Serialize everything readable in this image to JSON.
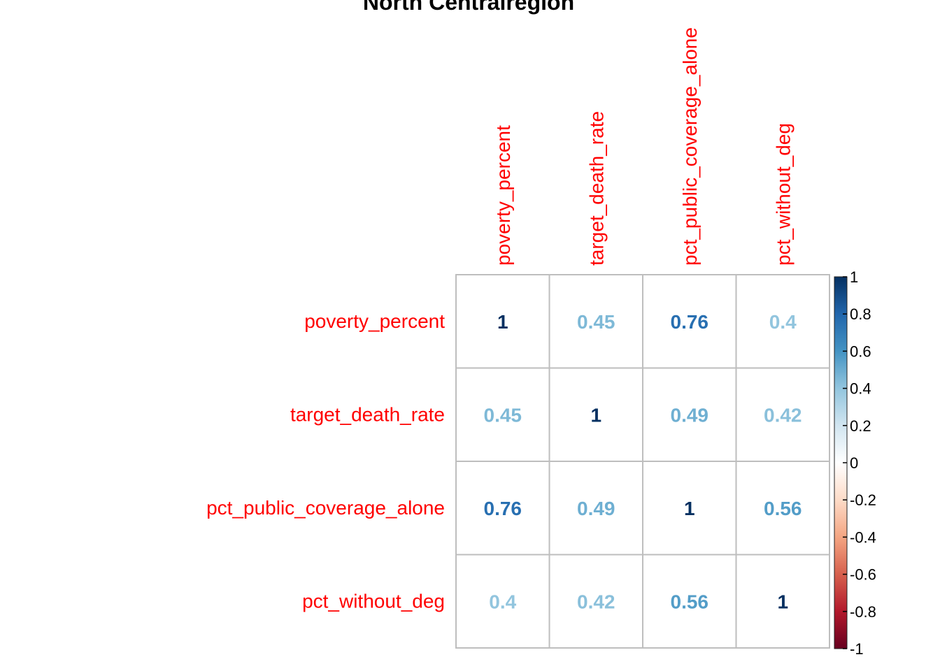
{
  "chart_data": {
    "type": "heatmap",
    "title": "North Centralregion",
    "variables": [
      "poverty_percent",
      "target_death_rate",
      "pct_public_coverage_alone",
      "pct_without_deg"
    ],
    "matrix": [
      [
        1,
        0.45,
        0.76,
        0.4
      ],
      [
        0.45,
        1,
        0.49,
        0.42
      ],
      [
        0.76,
        0.49,
        1,
        0.56
      ],
      [
        0.4,
        0.42,
        0.56,
        1
      ]
    ],
    "cell_labels": [
      [
        "1",
        "0.45",
        "0.76",
        "0.4"
      ],
      [
        "0.45",
        "1",
        "0.49",
        "0.42"
      ],
      [
        "0.76",
        "0.49",
        "1",
        "0.56"
      ],
      [
        "0.4",
        "0.42",
        "0.56",
        "1"
      ]
    ],
    "color_scale": {
      "range": [
        -1,
        1
      ],
      "ticks": [
        "1",
        "0.8",
        "0.6",
        "0.4",
        "0.2",
        "0",
        "-0.2",
        "-0.4",
        "-0.6",
        "-0.8",
        "-1"
      ],
      "tick_values": [
        1,
        0.8,
        0.6,
        0.4,
        0.2,
        0,
        -0.2,
        -0.4,
        -0.6,
        -0.8,
        -1
      ],
      "colors": [
        "#67001F",
        "#B2182B",
        "#D6604D",
        "#F4A582",
        "#FDDBC7",
        "#FFFFFF",
        "#D1E5F0",
        "#92C5DE",
        "#4393C3",
        "#2166AC",
        "#053061"
      ]
    },
    "label_color": "#ff0000",
    "grid_color": "#bebebe",
    "legend_placement": "right"
  }
}
